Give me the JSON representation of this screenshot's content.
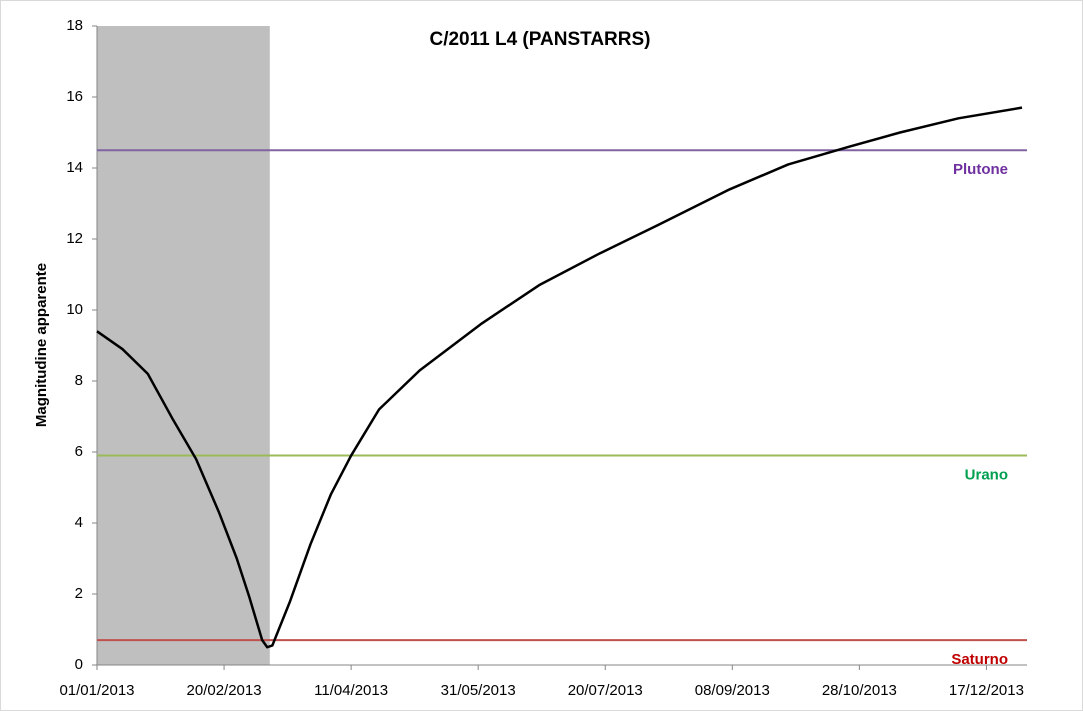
{
  "chart_data": {
    "type": "line",
    "title": "C/2011 L4 (PANSTARRS)",
    "y_label": "Magnitudine apparente",
    "xlim": [
      "01/01/2013",
      "31/12/2013"
    ],
    "xticks": [
      "01/01/2013",
      "20/02/2013",
      "11/04/2013",
      "31/05/2013",
      "20/07/2013",
      "08/09/2013",
      "28/10/2013",
      "17/12/2013"
    ],
    "ylim": [
      0,
      18
    ],
    "yticks": [
      0,
      2,
      4,
      6,
      8,
      10,
      12,
      14,
      16,
      18
    ],
    "shaded_region": {
      "x": [
        "01/01/2013",
        "10/03/2013"
      ],
      "color": "#bfbfbf"
    },
    "reference_lines": [
      {
        "name": "Plutone",
        "value": 14.5,
        "color": "#8064a2",
        "label_color": "#7030a0"
      },
      {
        "name": "Urano",
        "value": 5.9,
        "color": "#9bbb59",
        "label_color": "#00a050"
      },
      {
        "name": "Saturno",
        "value": 0.7,
        "color": "#c0504d",
        "label_color": "#c00000"
      }
    ],
    "x": [
      "01/01/2013",
      "11/01/2013",
      "21/01/2013",
      "31/01/2013",
      "09/02/2013",
      "18/02/2013",
      "25/02/2013",
      "02/03/2013",
      "07/03/2013",
      "09/03/2013",
      "11/03/2013",
      "18/03/2013",
      "26/03/2013",
      "03/04/2013",
      "11/04/2013",
      "22/04/2013",
      "08/05/2013",
      "01/06/2013",
      "24/06/2013",
      "18/07/2013",
      "10/08/2013",
      "07/09/2013",
      "30/09/2013",
      "24/10/2013",
      "13/11/2013",
      "06/12/2013",
      "31/12/2013"
    ],
    "series": [
      {
        "color": "#000000",
        "values": [
          9.4,
          8.9,
          8.2,
          6.9,
          5.8,
          4.3,
          3.0,
          1.9,
          0.7,
          0.5,
          0.55,
          1.8,
          3.4,
          4.8,
          5.9,
          7.2,
          8.3,
          9.6,
          10.7,
          11.6,
          12.4,
          13.4,
          14.1,
          14.6,
          15.0,
          15.4,
          15.7
        ]
      }
    ]
  }
}
